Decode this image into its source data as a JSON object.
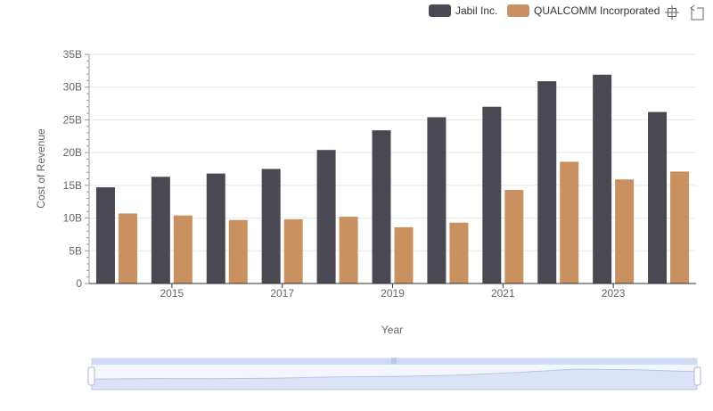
{
  "chart_data": {
    "type": "bar",
    "categories": [
      "2014",
      "2015",
      "2016",
      "2017",
      "2018",
      "2019",
      "2020",
      "2021",
      "2022",
      "2023",
      "2024"
    ],
    "x_tick_labels": [
      "2015",
      "2017",
      "2019",
      "2021",
      "2023"
    ],
    "y_tick_labels": [
      "0",
      "5B",
      "10B",
      "15B",
      "20B",
      "25B",
      "30B",
      "35B"
    ],
    "xlabel": "Year",
    "ylabel": "Cost of Revenue",
    "ylim": [
      0,
      35
    ],
    "y_unit": "B",
    "grid": true,
    "legend_position": "top-right",
    "series": [
      {
        "name": "Jabil Inc.",
        "color": "#4a4953",
        "values": [
          14.7,
          16.3,
          16.8,
          17.5,
          20.4,
          23.4,
          25.4,
          27.0,
          30.9,
          31.9,
          26.2
        ]
      },
      {
        "name": "QUALCOMM Incorporated",
        "color": "#c8915f",
        "values": [
          10.7,
          10.4,
          9.7,
          9.8,
          10.2,
          8.6,
          9.3,
          14.3,
          18.6,
          15.9,
          17.1
        ]
      }
    ]
  },
  "toolbox": {
    "zoom_icon": "zoom-select-icon",
    "restore_icon": "zoom-restore-icon"
  },
  "datazoom": {
    "start": 0,
    "end": 100,
    "handle_color": "#ffffff",
    "fill_color": "#dbe4f7"
  }
}
